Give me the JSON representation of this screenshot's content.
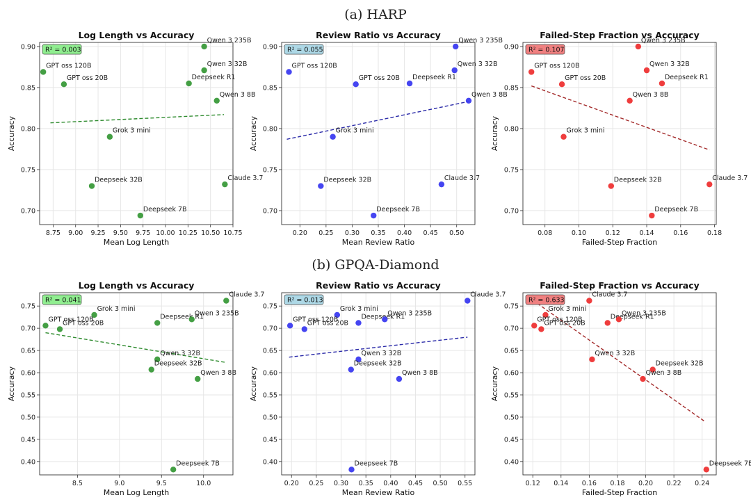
{
  "figure": {
    "rows": [
      {
        "label": "(a) HARP"
      },
      {
        "label": "(b) GPQA-Diamond"
      }
    ]
  },
  "colors": {
    "log": "#3a9a3a",
    "review": "#3b3bf0",
    "failed": "#ee3333",
    "log_line": "#2e8b2e",
    "review_line": "#2a2aa8",
    "failed_line": "#a32a2a",
    "log_box": "#90ee90",
    "review_box": "#add8e6",
    "failed_box": "#f08080"
  },
  "chart_data": [
    {
      "type": "scatter",
      "row": 0,
      "col": 0,
      "color": "log",
      "title": "Log Length vs Accuracy",
      "xlabel": "Mean Log Length",
      "ylabel": "Accuracy",
      "r2": "R² = 0.003",
      "xlim": [
        8.6,
        10.75
      ],
      "ylim": [
        0.683,
        0.905
      ],
      "xticks": [
        "8.75",
        "9.00",
        "9.25",
        "9.50",
        "9.75",
        "10.00",
        "10.25",
        "10.50",
        "10.75"
      ],
      "yticks": [
        "0.70",
        "0.75",
        "0.80",
        "0.85",
        "0.90"
      ],
      "trend": [
        [
          8.72,
          0.807
        ],
        [
          10.65,
          0.817
        ]
      ],
      "points": [
        {
          "name": "Qwen 3 235B",
          "x": 10.43,
          "y": 0.9
        },
        {
          "name": "GPT oss 120B",
          "x": 8.64,
          "y": 0.869
        },
        {
          "name": "Qwen 3 32B",
          "x": 10.43,
          "y": 0.871
        },
        {
          "name": "GPT oss 20B",
          "x": 8.87,
          "y": 0.854
        },
        {
          "name": "Deepseek R1",
          "x": 10.26,
          "y": 0.855
        },
        {
          "name": "Qwen 3 8B",
          "x": 10.57,
          "y": 0.834
        },
        {
          "name": "Grok 3 mini",
          "x": 9.38,
          "y": 0.79
        },
        {
          "name": "Deepseek 32B",
          "x": 9.18,
          "y": 0.73
        },
        {
          "name": "Claude 3.7",
          "x": 10.66,
          "y": 0.732
        },
        {
          "name": "Deepseek 7B",
          "x": 9.72,
          "y": 0.694
        }
      ]
    },
    {
      "type": "scatter",
      "row": 0,
      "col": 1,
      "color": "review",
      "title": "Review Ratio vs Accuracy",
      "xlabel": "Mean Review Ratio",
      "ylabel": "Accuracy",
      "r2": "R² = 0.055",
      "xlim": [
        0.165,
        0.535
      ],
      "ylim": [
        0.683,
        0.905
      ],
      "xticks": [
        "0.20",
        "0.25",
        "0.30",
        "0.35",
        "0.40",
        "0.45",
        "0.50"
      ],
      "yticks": [
        "0.70",
        "0.75",
        "0.80",
        "0.85",
        "0.90"
      ],
      "trend": [
        [
          0.175,
          0.787
        ],
        [
          0.523,
          0.833
        ]
      ],
      "points": [
        {
          "name": "Qwen 3 235B",
          "x": 0.498,
          "y": 0.9
        },
        {
          "name": "GPT oss 120B",
          "x": 0.179,
          "y": 0.869
        },
        {
          "name": "Qwen 3 32B",
          "x": 0.496,
          "y": 0.871
        },
        {
          "name": "GPT oss 20B",
          "x": 0.307,
          "y": 0.854
        },
        {
          "name": "Deepseek R1",
          "x": 0.41,
          "y": 0.855
        },
        {
          "name": "Qwen 3 8B",
          "x": 0.523,
          "y": 0.834
        },
        {
          "name": "Grok 3 mini",
          "x": 0.263,
          "y": 0.79
        },
        {
          "name": "Deepseek 32B",
          "x": 0.24,
          "y": 0.73
        },
        {
          "name": "Claude 3.7",
          "x": 0.471,
          "y": 0.732
        },
        {
          "name": "Deepseek 7B",
          "x": 0.341,
          "y": 0.694
        }
      ]
    },
    {
      "type": "scatter",
      "row": 0,
      "col": 2,
      "color": "failed",
      "title": "Failed-Step Fraction vs Accuracy",
      "xlabel": "Failed-Step Fraction",
      "ylabel": "Accuracy",
      "r2": "R² = 0.107",
      "xlim": [
        0.067,
        0.181
      ],
      "ylim": [
        0.683,
        0.905
      ],
      "xticks": [
        "0.08",
        "0.10",
        "0.12",
        "0.14",
        "0.16",
        "0.18"
      ],
      "yticks": [
        "0.70",
        "0.75",
        "0.80",
        "0.85",
        "0.90"
      ],
      "trend": [
        [
          0.072,
          0.852
        ],
        [
          0.177,
          0.774
        ]
      ],
      "points": [
        {
          "name": "Qwen 3 235B",
          "x": 0.135,
          "y": 0.9
        },
        {
          "name": "GPT oss 120B",
          "x": 0.072,
          "y": 0.869
        },
        {
          "name": "Qwen 3 32B",
          "x": 0.14,
          "y": 0.871
        },
        {
          "name": "GPT oss 20B",
          "x": 0.09,
          "y": 0.854
        },
        {
          "name": "Deepseek R1",
          "x": 0.149,
          "y": 0.855
        },
        {
          "name": "Qwen 3 8B",
          "x": 0.13,
          "y": 0.834
        },
        {
          "name": "Grok 3 mini",
          "x": 0.091,
          "y": 0.79
        },
        {
          "name": "Deepseek 32B",
          "x": 0.119,
          "y": 0.73
        },
        {
          "name": "Claude 3.7",
          "x": 0.177,
          "y": 0.732
        },
        {
          "name": "Deepseek 7B",
          "x": 0.143,
          "y": 0.694
        }
      ]
    },
    {
      "type": "scatter",
      "row": 1,
      "col": 0,
      "color": "log",
      "title": "Log Length vs Accuracy",
      "xlabel": "Mean Log Length",
      "ylabel": "Accuracy",
      "r2": "R² = 0.041",
      "xlim": [
        8.05,
        10.35
      ],
      "ylim": [
        0.37,
        0.78
      ],
      "xticks": [
        "8.5",
        "9.0",
        "9.5",
        "10.0"
      ],
      "yticks": [
        "0.40",
        "0.45",
        "0.50",
        "0.55",
        "0.60",
        "0.65",
        "0.70",
        "0.75"
      ],
      "trend": [
        [
          8.12,
          0.69
        ],
        [
          10.27,
          0.623
        ]
      ],
      "points": [
        {
          "name": "Claude 3.7",
          "x": 10.27,
          "y": 0.762
        },
        {
          "name": "Grok 3 mini",
          "x": 8.7,
          "y": 0.73
        },
        {
          "name": "Deepseek R1",
          "x": 9.45,
          "y": 0.712
        },
        {
          "name": "Qwen 3 235B",
          "x": 9.86,
          "y": 0.72
        },
        {
          "name": "GPT oss 120B",
          "x": 8.12,
          "y": 0.706
        },
        {
          "name": "GPT oss 20B",
          "x": 8.29,
          "y": 0.698
        },
        {
          "name": "Qwen 3 32B",
          "x": 9.45,
          "y": 0.63
        },
        {
          "name": "Deepseek 32B",
          "x": 9.38,
          "y": 0.607
        },
        {
          "name": "Qwen 3 8B",
          "x": 9.93,
          "y": 0.586
        },
        {
          "name": "Deepseek 7B",
          "x": 9.64,
          "y": 0.382
        }
      ]
    },
    {
      "type": "scatter",
      "row": 1,
      "col": 1,
      "color": "review",
      "title": "Review Ratio vs Accuracy",
      "xlabel": "Mean Review Ratio",
      "ylabel": "Accuracy",
      "r2": "R² = 0.013",
      "xlim": [
        0.18,
        0.57
      ],
      "ylim": [
        0.37,
        0.78
      ],
      "xticks": [
        "0.20",
        "0.25",
        "0.30",
        "0.35",
        "0.40",
        "0.45",
        "0.50",
        "0.55"
      ],
      "yticks": [
        "0.40",
        "0.45",
        "0.50",
        "0.55",
        "0.60",
        "0.65",
        "0.70",
        "0.75"
      ],
      "trend": [
        [
          0.195,
          0.635
        ],
        [
          0.555,
          0.68
        ]
      ],
      "points": [
        {
          "name": "Claude 3.7",
          "x": 0.555,
          "y": 0.762
        },
        {
          "name": "Grok 3 mini",
          "x": 0.292,
          "y": 0.73
        },
        {
          "name": "Deepseek R1",
          "x": 0.335,
          "y": 0.712
        },
        {
          "name": "Qwen 3 235B",
          "x": 0.388,
          "y": 0.72
        },
        {
          "name": "GPT oss 120B",
          "x": 0.197,
          "y": 0.706
        },
        {
          "name": "GPT oss 20B",
          "x": 0.226,
          "y": 0.698
        },
        {
          "name": "Qwen 3 32B",
          "x": 0.335,
          "y": 0.63
        },
        {
          "name": "Deepseek 32B",
          "x": 0.32,
          "y": 0.607
        },
        {
          "name": "Qwen 3 8B",
          "x": 0.417,
          "y": 0.586
        },
        {
          "name": "Deepseek 7B",
          "x": 0.321,
          "y": 0.382
        }
      ]
    },
    {
      "type": "scatter",
      "row": 1,
      "col": 2,
      "color": "failed",
      "title": "Failed-Step Fraction vs Accuracy",
      "xlabel": "Failed-Step Fraction",
      "ylabel": "Accuracy",
      "r2": "R² = 0.633",
      "xlim": [
        0.113,
        0.25
      ],
      "ylim": [
        0.37,
        0.78
      ],
      "xticks": [
        "0.12",
        "0.14",
        "0.16",
        "0.18",
        "0.20",
        "0.22",
        "0.24"
      ],
      "yticks": [
        "0.40",
        "0.45",
        "0.50",
        "0.55",
        "0.60",
        "0.65",
        "0.70",
        "0.75"
      ],
      "trend": [
        [
          0.12,
          0.763
        ],
        [
          0.242,
          0.49
        ]
      ],
      "points": [
        {
          "name": "Claude 3.7",
          "x": 0.16,
          "y": 0.762
        },
        {
          "name": "Grok 3 mini",
          "x": 0.129,
          "y": 0.73
        },
        {
          "name": "Deepseek R1",
          "x": 0.173,
          "y": 0.712
        },
        {
          "name": "Qwen 3 235B",
          "x": 0.181,
          "y": 0.72
        },
        {
          "name": "GPT oss 120B",
          "x": 0.121,
          "y": 0.706
        },
        {
          "name": "GPT oss 20B",
          "x": 0.126,
          "y": 0.698
        },
        {
          "name": "Qwen 3 32B",
          "x": 0.162,
          "y": 0.63
        },
        {
          "name": "Deepseek 32B",
          "x": 0.205,
          "y": 0.607
        },
        {
          "name": "Qwen 3 8B",
          "x": 0.198,
          "y": 0.586
        },
        {
          "name": "Deepseek 7B",
          "x": 0.243,
          "y": 0.382
        }
      ]
    }
  ]
}
